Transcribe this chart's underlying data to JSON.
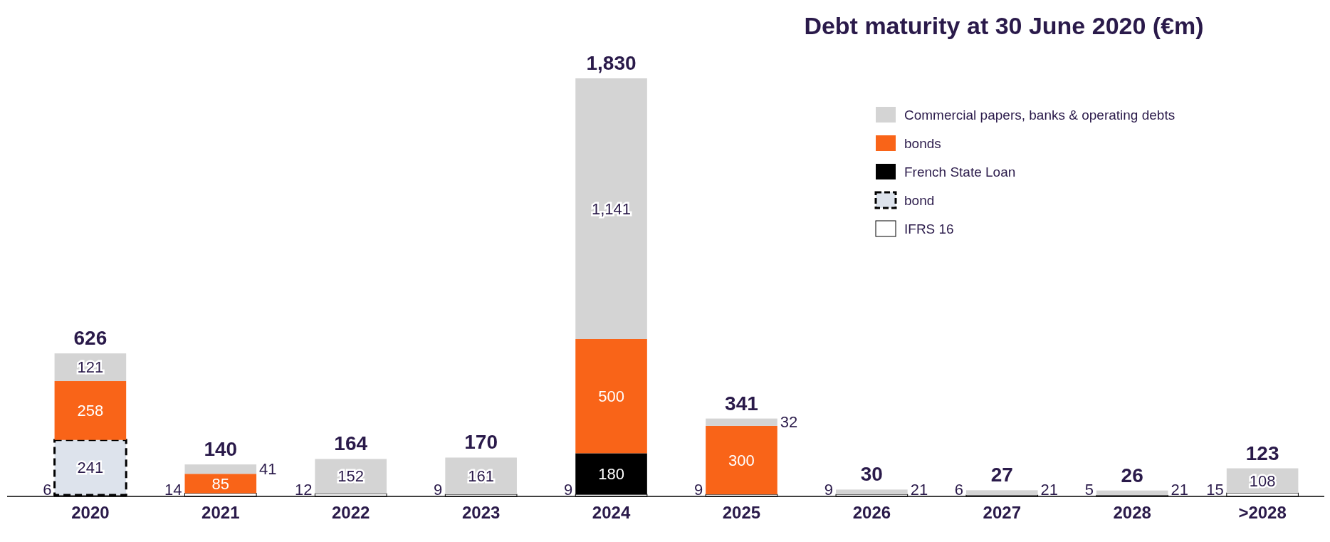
{
  "chart_data": {
    "type": "bar",
    "title": "Debt maturity at 30 June 2020 (€m)",
    "stacked": true,
    "data_labels": true,
    "legend": "top right",
    "categories": [
      "2020",
      "2021",
      "2022",
      "2023",
      "2024",
      "2025",
      "2026",
      "2027",
      "2028",
      ">2028"
    ],
    "series": [
      {
        "name": "IFRS 16",
        "color": "#ffffff",
        "values": [
          6,
          14,
          12,
          9,
          9,
          9,
          9,
          6,
          5,
          15
        ]
      },
      {
        "name": "bond",
        "color": "#dde3ec",
        "line_style": "dashed",
        "values": [
          241,
          null,
          null,
          null,
          null,
          null,
          null,
          null,
          null,
          null
        ]
      },
      {
        "name": "French State Loan",
        "color": "#000000",
        "values": [
          null,
          null,
          null,
          null,
          180,
          null,
          null,
          null,
          null,
          null
        ]
      },
      {
        "name": "bonds",
        "color": "#f96418",
        "values": [
          258,
          85,
          null,
          null,
          500,
          300,
          null,
          null,
          null,
          null
        ]
      },
      {
        "name": "Commercial papers, banks & operating debts",
        "color": "#d4d4d4",
        "value_labels": [
          "121",
          "41",
          "152",
          "161",
          "1,141",
          "32",
          "21",
          "21",
          "21",
          "108"
        ],
        "values": [
          121,
          41,
          152,
          161,
          1141,
          32,
          21,
          21,
          21,
          108
        ]
      }
    ],
    "totals": [
      "626",
      "140",
      "164",
      "170",
      "1,830",
      "341",
      "30",
      "27",
      "26",
      "123"
    ]
  }
}
